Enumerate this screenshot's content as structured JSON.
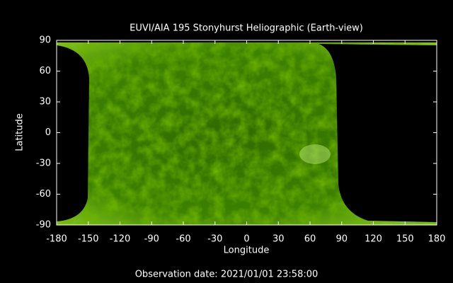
{
  "chart_data": {
    "type": "image",
    "title": "EUVI/AIA 195 Stonyhurst Heliographic (Earth-view)",
    "x_label": "Longitude",
    "y_label": "Latitude",
    "xlim": [
      -180,
      180
    ],
    "xticks": [
      -180,
      -150,
      -120,
      -90,
      -60,
      -30,
      0,
      30,
      60,
      90,
      120,
      150,
      180
    ],
    "ylim": [
      -90,
      90
    ],
    "yticks": [
      -90,
      -60,
      -30,
      0,
      30,
      60,
      90
    ],
    "footer": "Observation date: 2021/01/01 23:58:00"
  }
}
